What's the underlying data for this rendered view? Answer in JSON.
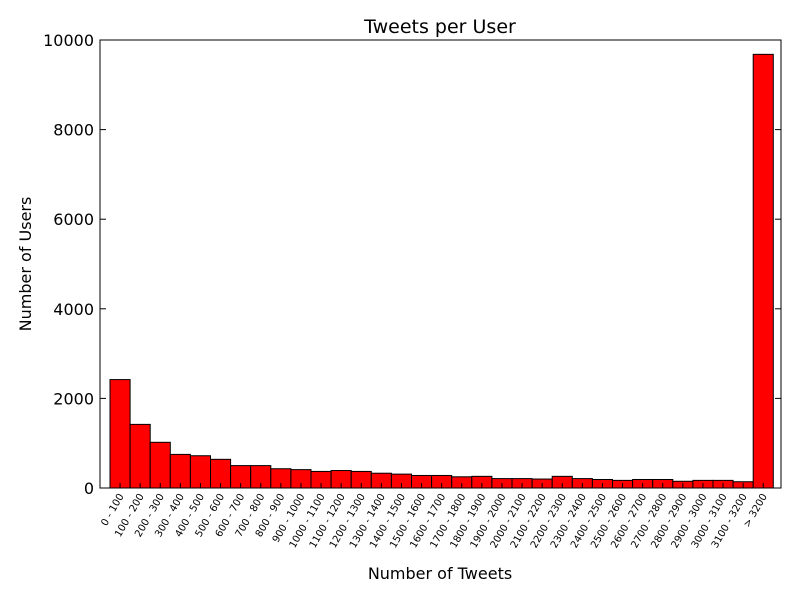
{
  "chart_data": {
    "type": "bar",
    "title": "Tweets per User",
    "xlabel": "Number of Tweets",
    "ylabel": "Number of Users",
    "ylim": [
      0,
      10000
    ],
    "yticks": [
      "0",
      "2000",
      "4000",
      "6000",
      "8000",
      "10000"
    ],
    "categories": [
      "0 - 100",
      "100 - 200",
      "200 - 300",
      "300 - 400",
      "400 - 500",
      "500 - 600",
      "600 - 700",
      "700 - 800",
      "800 - 900",
      "900 - 1000",
      "1000 - 1100",
      "1100 - 1200",
      "1200 - 1300",
      "1300 - 1400",
      "1400 - 1500",
      "1500 - 1600",
      "1600 - 1700",
      "1700 - 1800",
      "1800 - 1900",
      "1900 - 2000",
      "2000 - 2100",
      "2100 - 2200",
      "2200 - 2300",
      "2300 - 2400",
      "2400 - 2500",
      "2500 - 2600",
      "2600 - 2700",
      "2700 - 2800",
      "2800 - 2900",
      "2900 - 3000",
      "3000 - 3100",
      "3100 - 3200",
      "> 3200"
    ],
    "values": [
      2420,
      1420,
      1020,
      750,
      720,
      640,
      500,
      500,
      430,
      410,
      370,
      390,
      370,
      330,
      310,
      280,
      280,
      250,
      260,
      210,
      210,
      200,
      260,
      210,
      190,
      170,
      190,
      190,
      150,
      170,
      170,
      140,
      9680
    ],
    "bar_color": "#ff0000",
    "edge_color": "#000000",
    "grid": false,
    "legend": "none"
  }
}
